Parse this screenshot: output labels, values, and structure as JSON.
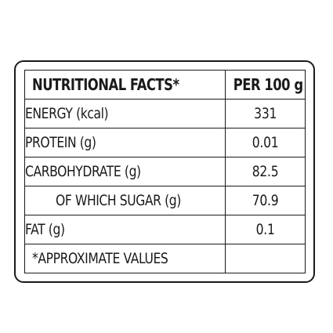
{
  "table": {
    "header": {
      "left": "NUTRITIONAL FACTS*",
      "right": "PER 100 g"
    },
    "rows": [
      {
        "label": "ENERGY (kcal)",
        "value": "331"
      },
      {
        "label": "PROTEIN (g)",
        "value": "0.01"
      },
      {
        "label": "CARBOHYDRATE (g)",
        "value": "82.5"
      },
      {
        "label": "OF WHICH SUGAR (g)",
        "value": "70.9"
      },
      {
        "label": "FAT (g)",
        "value": "0.1"
      }
    ],
    "footnote": "*APPROXIMATE VALUES"
  }
}
